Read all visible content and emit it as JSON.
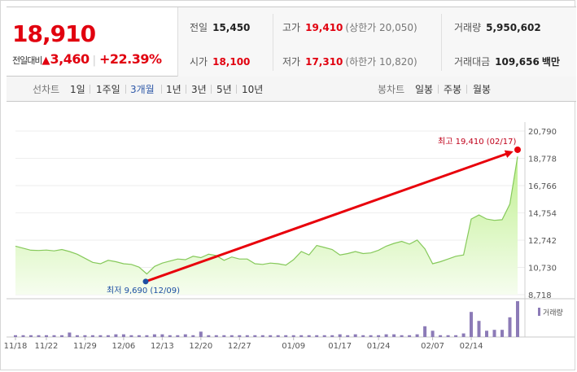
{
  "quote": {
    "price": "18,910",
    "change_label": "전일대비",
    "change_arrow": "▲",
    "change_amount": "3,460",
    "change_pct": "+22.39%",
    "stats": [
      {
        "label": "전일",
        "value": "15,450",
        "sub": "",
        "red": false
      },
      {
        "label": "고가",
        "value": "19,410",
        "sub": "(상한가 20,050)",
        "red": true
      },
      {
        "label": "거래량",
        "value": "5,950,602",
        "sub": "",
        "red": false
      },
      {
        "label": "시가",
        "value": "18,100",
        "sub": "",
        "red": true
      },
      {
        "label": "저가",
        "value": "17,310",
        "sub": "(하한가 10,820)",
        "red": true
      },
      {
        "label": "거래대금",
        "value": "109,656",
        "sub": "백만",
        "red": false
      }
    ]
  },
  "period_bar": {
    "line_label": "선차트",
    "line_periods": [
      "1일",
      "1주일",
      "3개월",
      "1년",
      "3년",
      "5년",
      "10년"
    ],
    "active": "3개월",
    "candle_label": "봉차트",
    "candle_periods": [
      "일봉",
      "주봉",
      "월봉"
    ]
  },
  "colors": {
    "price_up": "#e1000f",
    "area_fill": "#c9f0a8",
    "area_line": "#86c95b",
    "volume_bar": "#8c7bb7",
    "arrow": "#e8000b",
    "low_marker": "#1d4fa3"
  },
  "chart_data": {
    "type": "area",
    "y_ticks": [
      "20,790",
      "18,778",
      "16,766",
      "14,754",
      "12,742",
      "10,730",
      "8,718"
    ],
    "ylim": [
      8718,
      20790
    ],
    "x_tick_labels": [
      "11/18",
      "11/22",
      "11/29",
      "12/06",
      "12/13",
      "12/20",
      "12/27",
      "01/09",
      "01/17",
      "01/24",
      "02/07",
      "02/14"
    ],
    "x_tick_index": [
      0,
      4,
      9,
      14,
      19,
      24,
      29,
      36,
      42,
      47,
      54,
      59
    ],
    "values": [
      12300,
      12150,
      12000,
      11980,
      12010,
      11950,
      12050,
      11900,
      11700,
      11400,
      11100,
      11000,
      11250,
      11150,
      11000,
      10950,
      10750,
      10250,
      10800,
      11050,
      11200,
      11350,
      11300,
      11550,
      11450,
      11700,
      11600,
      11250,
      11500,
      11350,
      11350,
      11000,
      10950,
      11050,
      11000,
      10900,
      11300,
      11900,
      11650,
      12350,
      12200,
      12050,
      11650,
      11750,
      11900,
      11750,
      11800,
      12000,
      12300,
      12500,
      12650,
      12450,
      12750,
      12100,
      11000,
      11150,
      11350,
      11550,
      11650,
      14300,
      14600,
      14300,
      14200,
      14250,
      15400,
      18910
    ],
    "high_label": "최고 19,410 (02/17)",
    "low_label": "최저 9,690 (12/09)",
    "high": 19410,
    "low": 9690,
    "volume_legend": "거래량",
    "volume": [
      2,
      2,
      2,
      2,
      2,
      2,
      2,
      5,
      2,
      2,
      2,
      2,
      2,
      3,
      3,
      2,
      2,
      2,
      3,
      3,
      2,
      2,
      3,
      2,
      6,
      2,
      2,
      2,
      2,
      2,
      2,
      2,
      2,
      2,
      2,
      2,
      2,
      2,
      2,
      2,
      2,
      2,
      3,
      2,
      3,
      2,
      2,
      2,
      3,
      3,
      2,
      2,
      3,
      12,
      7,
      2,
      2,
      2,
      4,
      28,
      18,
      7,
      8,
      8,
      22,
      40
    ]
  }
}
